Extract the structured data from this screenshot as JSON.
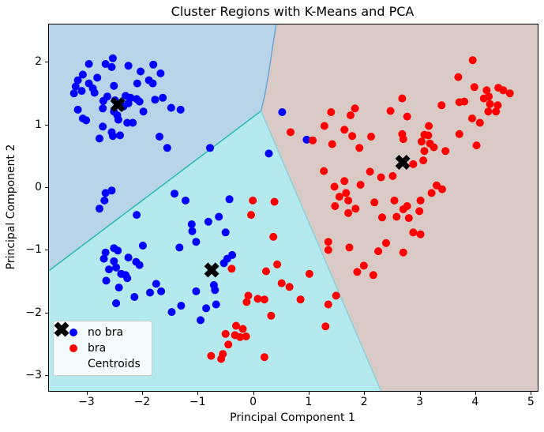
{
  "title": "Cluster Regions with K-Means and PCA",
  "chart_data": {
    "type": "scatter",
    "title": "Cluster Regions with K-Means and PCA",
    "xlabel": "Principal Component 1",
    "ylabel": "Principal Component 2",
    "xlim": [
      -3.69,
      5.11
    ],
    "ylim": [
      -3.24,
      2.61
    ],
    "grid": false,
    "legend_position": "lower left",
    "xticks": {
      "values": [
        -3,
        -2,
        -1,
        0,
        1,
        2,
        3,
        4,
        5
      ],
      "labels": [
        "−3",
        "−2",
        "−1",
        "0",
        "1",
        "2",
        "3",
        "4",
        "5"
      ]
    },
    "yticks": {
      "values": [
        2,
        1,
        0,
        -1,
        -2,
        -3
      ],
      "labels": [
        "2",
        "1",
        "0",
        "−1",
        "−2",
        "−3"
      ]
    },
    "legend": [
      {
        "label": "no bra",
        "marker": "dot",
        "color": "#0000ff"
      },
      {
        "label": "bra",
        "marker": "dot",
        "color": "#ff0000"
      },
      {
        "label": "Centroids",
        "marker": "X",
        "color": "#000000"
      }
    ],
    "regions": [
      {
        "name": "cluster-region-blue",
        "color": "#b8d4e8",
        "polygon": [
          [
            -3.69,
            2.61
          ],
          [
            0.4,
            2.61
          ],
          [
            0.35,
            2.33
          ],
          [
            0.27,
            1.85
          ],
          [
            0.2,
            1.5
          ],
          [
            0.13,
            1.23
          ],
          [
            -3.69,
            -1.32
          ]
        ]
      },
      {
        "name": "cluster-region-cyan",
        "color": "#b4e9ee",
        "polygon": [
          [
            -3.69,
            -1.32
          ],
          [
            0.13,
            1.23
          ],
          [
            2.29,
            -3.24
          ],
          [
            -3.69,
            -3.24
          ]
        ]
      },
      {
        "name": "cluster-region-tan",
        "color": "#d9cac6",
        "polygon": [
          [
            0.4,
            2.61
          ],
          [
            5.11,
            2.61
          ],
          [
            5.11,
            -3.24
          ],
          [
            2.29,
            -3.24
          ],
          [
            0.13,
            1.23
          ],
          [
            0.2,
            1.5
          ],
          [
            0.27,
            1.85
          ],
          [
            0.35,
            2.33
          ]
        ]
      }
    ],
    "boundaries": [
      {
        "name": "boundary-blue-tan",
        "color": "#6fa8d6",
        "points": [
          [
            0.4,
            2.61
          ],
          [
            0.35,
            2.33
          ],
          [
            0.27,
            1.85
          ],
          [
            0.2,
            1.5
          ],
          [
            0.13,
            1.23
          ]
        ]
      },
      {
        "name": "boundary-blue-cyan",
        "color": "#2fbcb4",
        "points": [
          [
            0.13,
            1.23
          ],
          [
            -3.69,
            -1.32
          ]
        ]
      },
      {
        "name": "boundary-cyan-tan",
        "color": "#8fd0dc",
        "points": [
          [
            0.13,
            1.23
          ],
          [
            2.29,
            -3.24
          ]
        ]
      }
    ],
    "series": [
      {
        "name": "no bra",
        "color": "#0000ff",
        "marker": "dot",
        "points": [
          [
            -2.97,
            1.98
          ],
          [
            -2.67,
            1.98
          ],
          [
            -2.54,
            2.07
          ],
          [
            -2.56,
            1.93
          ],
          [
            -2.26,
            1.95
          ],
          [
            -2.04,
            1.86
          ],
          [
            -1.81,
            1.97
          ],
          [
            -3.08,
            1.81
          ],
          [
            -3.17,
            1.72
          ],
          [
            -2.82,
            1.76
          ],
          [
            -1.68,
            1.83
          ],
          [
            -1.89,
            1.72
          ],
          [
            -2.1,
            1.67
          ],
          [
            -1.82,
            1.67
          ],
          [
            -3.21,
            1.62
          ],
          [
            -3.1,
            1.55
          ],
          [
            -2.97,
            1.67
          ],
          [
            -2.9,
            1.59
          ],
          [
            -2.87,
            1.52
          ],
          [
            -3.24,
            1.51
          ],
          [
            -2.52,
            1.63
          ],
          [
            -2.71,
            1.39
          ],
          [
            -2.64,
            1.46
          ],
          [
            -2.5,
            1.4
          ],
          [
            -2.31,
            1.47
          ],
          [
            -2.22,
            1.44
          ],
          [
            -2.11,
            1.42
          ],
          [
            -2.06,
            1.38
          ],
          [
            -1.78,
            1.41
          ],
          [
            -1.64,
            1.44
          ],
          [
            -1.49,
            1.28
          ],
          [
            -1.32,
            1.25
          ],
          [
            -3.17,
            1.25
          ],
          [
            -3.08,
            1.11
          ],
          [
            -3.02,
            1.08
          ],
          [
            -2.72,
            1.27
          ],
          [
            -2.52,
            1.22
          ],
          [
            -2.46,
            1.16
          ],
          [
            -2.35,
            1.3
          ],
          [
            -2.26,
            1.35
          ],
          [
            -1.99,
            1.22
          ],
          [
            -2.44,
            1.09
          ],
          [
            -2.28,
            1.04
          ],
          [
            -2.18,
            1.04
          ],
          [
            -2.72,
            0.98
          ],
          [
            -2.56,
            0.89
          ],
          [
            -2.41,
            0.84
          ],
          [
            -2.54,
            0.83
          ],
          [
            -2.78,
            0.79
          ],
          [
            -1.7,
            0.82
          ],
          [
            -1.56,
            0.64
          ],
          [
            -0.79,
            0.64
          ],
          [
            -2.67,
            -0.08
          ],
          [
            -2.56,
            -0.04
          ],
          [
            -2.69,
            -0.2
          ],
          [
            -2.78,
            -0.33
          ],
          [
            -1.43,
            -0.09
          ],
          [
            -1.23,
            -0.2
          ],
          [
            -2.11,
            -0.43
          ],
          [
            -0.82,
            -0.54
          ],
          [
            -0.63,
            -0.46
          ],
          [
            -1.12,
            -0.58
          ],
          [
            -1.11,
            -0.69
          ],
          [
            -0.51,
            -0.71
          ],
          [
            -1.04,
            -0.86
          ],
          [
            -0.44,
            -0.18
          ],
          [
            -2.0,
            -0.92
          ],
          [
            -2.67,
            -1.03
          ],
          [
            -2.52,
            -0.96
          ],
          [
            -2.45,
            -1.0
          ],
          [
            -2.7,
            -1.13
          ],
          [
            -2.52,
            -1.17
          ],
          [
            -2.26,
            -1.11
          ],
          [
            -2.12,
            -1.18
          ],
          [
            -2.06,
            -1.23
          ],
          [
            -2.61,
            -1.3
          ],
          [
            -2.48,
            -1.27
          ],
          [
            -2.39,
            -1.37
          ],
          [
            -2.31,
            -1.39
          ],
          [
            -2.28,
            -1.44
          ],
          [
            -2.66,
            -1.48
          ],
          [
            -2.43,
            -1.59
          ],
          [
            -1.34,
            -0.95
          ],
          [
            -0.48,
            -1.13
          ],
          [
            -0.54,
            -1.2
          ],
          [
            -0.39,
            -1.07
          ],
          [
            -1.76,
            -1.53
          ],
          [
            -1.87,
            -1.67
          ],
          [
            -1.67,
            -1.65
          ],
          [
            -2.15,
            -1.74
          ],
          [
            -2.48,
            -1.84
          ],
          [
            -1.04,
            -1.65
          ],
          [
            -0.72,
            -1.55
          ],
          [
            -0.7,
            -1.63
          ],
          [
            -1.48,
            -1.98
          ],
          [
            -1.31,
            -1.88
          ],
          [
            -0.86,
            -1.92
          ],
          [
            -0.68,
            -1.86
          ],
          [
            -0.96,
            -2.11
          ],
          [
            0.51,
            1.21
          ],
          [
            0.95,
            0.77
          ],
          [
            0.27,
            0.55
          ]
        ]
      },
      {
        "name": "bra",
        "color": "#ff0000",
        "marker": "dot",
        "points": [
          [
            -0.02,
            -0.2
          ],
          [
            -0.05,
            -0.43
          ],
          [
            -0.4,
            -1.29
          ],
          [
            0.37,
            -0.22
          ],
          [
            -0.1,
            -1.72
          ],
          [
            -0.13,
            -1.82
          ],
          [
            1.39,
            1.21
          ],
          [
            1.74,
            1.16
          ],
          [
            1.82,
            1.27
          ],
          [
            2.46,
            1.23
          ],
          [
            2.67,
            1.43
          ],
          [
            1.27,
            0.99
          ],
          [
            0.66,
            0.89
          ],
          [
            1.06,
            0.76
          ],
          [
            1.63,
            0.93
          ],
          [
            1.77,
            0.83
          ],
          [
            2.11,
            0.82
          ],
          [
            1.41,
            0.7
          ],
          [
            1.9,
            0.64
          ],
          [
            2.67,
            0.86
          ],
          [
            1.26,
            0.27
          ],
          [
            2.09,
            0.26
          ],
          [
            2.29,
            0.17
          ],
          [
            2.5,
            0.19
          ],
          [
            1.45,
            0.02
          ],
          [
            1.63,
            0.11
          ],
          [
            1.92,
            0.05
          ],
          [
            1.66,
            -0.08
          ],
          [
            1.54,
            -0.14
          ],
          [
            1.7,
            -0.2
          ],
          [
            2.17,
            -0.23
          ],
          [
            2.53,
            -0.2
          ],
          [
            1.46,
            -0.29
          ],
          [
            1.7,
            -0.4
          ],
          [
            1.83,
            -0.33
          ],
          [
            2.31,
            -0.47
          ],
          [
            2.57,
            -0.46
          ],
          [
            2.69,
            -0.34
          ],
          [
            2.76,
            -0.29
          ],
          [
            2.79,
            -0.48
          ],
          [
            2.98,
            -0.37
          ],
          [
            2.87,
            -0.71
          ],
          [
            3.0,
            -0.74
          ],
          [
            1.34,
            -0.86
          ],
          [
            1.34,
            -0.99
          ],
          [
            1.72,
            -0.95
          ],
          [
            2.38,
            -0.88
          ],
          [
            2.24,
            -1.01
          ],
          [
            2.69,
            -1.03
          ],
          [
            1.98,
            -1.24
          ],
          [
            1.86,
            -1.34
          ],
          [
            2.15,
            -1.39
          ],
          [
            1.48,
            -1.72
          ],
          [
            1.34,
            -1.86
          ],
          [
            1.29,
            -2.21
          ],
          [
            3.94,
            2.04
          ],
          [
            3.68,
            1.77
          ],
          [
            3.97,
            1.61
          ],
          [
            4.19,
            1.56
          ],
          [
            4.4,
            1.6
          ],
          [
            4.49,
            1.56
          ],
          [
            4.61,
            1.51
          ],
          [
            4.14,
            1.43
          ],
          [
            4.23,
            1.46
          ],
          [
            4.25,
            1.34
          ],
          [
            4.39,
            1.32
          ],
          [
            3.38,
            1.32
          ],
          [
            3.7,
            1.37
          ],
          [
            3.79,
            1.38
          ],
          [
            4.22,
            1.22
          ],
          [
            4.36,
            1.22
          ],
          [
            3.93,
            1.11
          ],
          [
            4.07,
            1.04
          ],
          [
            2.76,
            1.14
          ],
          [
            3.15,
            0.99
          ],
          [
            3.7,
            0.86
          ],
          [
            3.07,
            0.85
          ],
          [
            3.14,
            0.84
          ],
          [
            3.02,
            0.74
          ],
          [
            3.17,
            0.71
          ],
          [
            3.24,
            0.65
          ],
          [
            3.07,
            0.59
          ],
          [
            3.45,
            0.59
          ],
          [
            3.05,
            0.44
          ],
          [
            4.01,
            0.68
          ],
          [
            2.69,
            0.78
          ],
          [
            2.87,
            0.38
          ],
          [
            3.29,
            0.04
          ],
          [
            3.39,
            -0.02
          ],
          [
            3.2,
            -0.08
          ],
          [
            3.0,
            -0.2
          ],
          [
            0.07,
            -1.77
          ],
          [
            0.19,
            -1.78
          ],
          [
            0.84,
            -1.78
          ],
          [
            0.31,
            -2.04
          ],
          [
            -0.32,
            -2.2
          ],
          [
            -0.2,
            -2.25
          ],
          [
            -0.51,
            -2.33
          ],
          [
            -0.34,
            -2.35
          ],
          [
            -0.25,
            -2.38
          ],
          [
            -0.14,
            -2.37
          ],
          [
            -0.46,
            -2.5
          ],
          [
            -0.77,
            -2.68
          ],
          [
            -0.56,
            -2.65
          ],
          [
            -0.59,
            -2.73
          ],
          [
            0.19,
            -2.7
          ],
          [
            0.35,
            -0.78
          ],
          [
            0.42,
            -1.22
          ],
          [
            0.22,
            -1.33
          ],
          [
            0.5,
            -1.52
          ],
          [
            0.64,
            -1.58
          ],
          [
            1.0,
            -1.37
          ]
        ]
      },
      {
        "name": "Centroids",
        "color": "#000000",
        "marker": "X",
        "points": [
          [
            -2.45,
            1.33
          ],
          [
            -0.76,
            -1.31
          ],
          [
            2.68,
            0.41
          ]
        ]
      }
    ]
  }
}
